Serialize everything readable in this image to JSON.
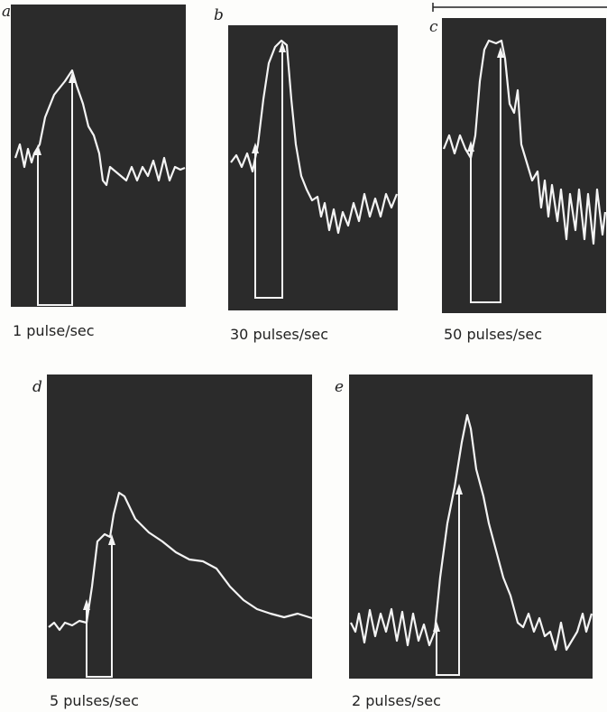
{
  "figure": {
    "panels": [
      {
        "letter": "a",
        "caption": "1 pulse/sec"
      },
      {
        "letter": "b",
        "caption": "30 pulses/sec"
      },
      {
        "letter": "c",
        "caption": "50 pulses/sec"
      },
      {
        "letter": "d",
        "caption": "5 pulses/sec"
      },
      {
        "letter": "e",
        "caption": "2 pulses/sec"
      }
    ]
  }
}
